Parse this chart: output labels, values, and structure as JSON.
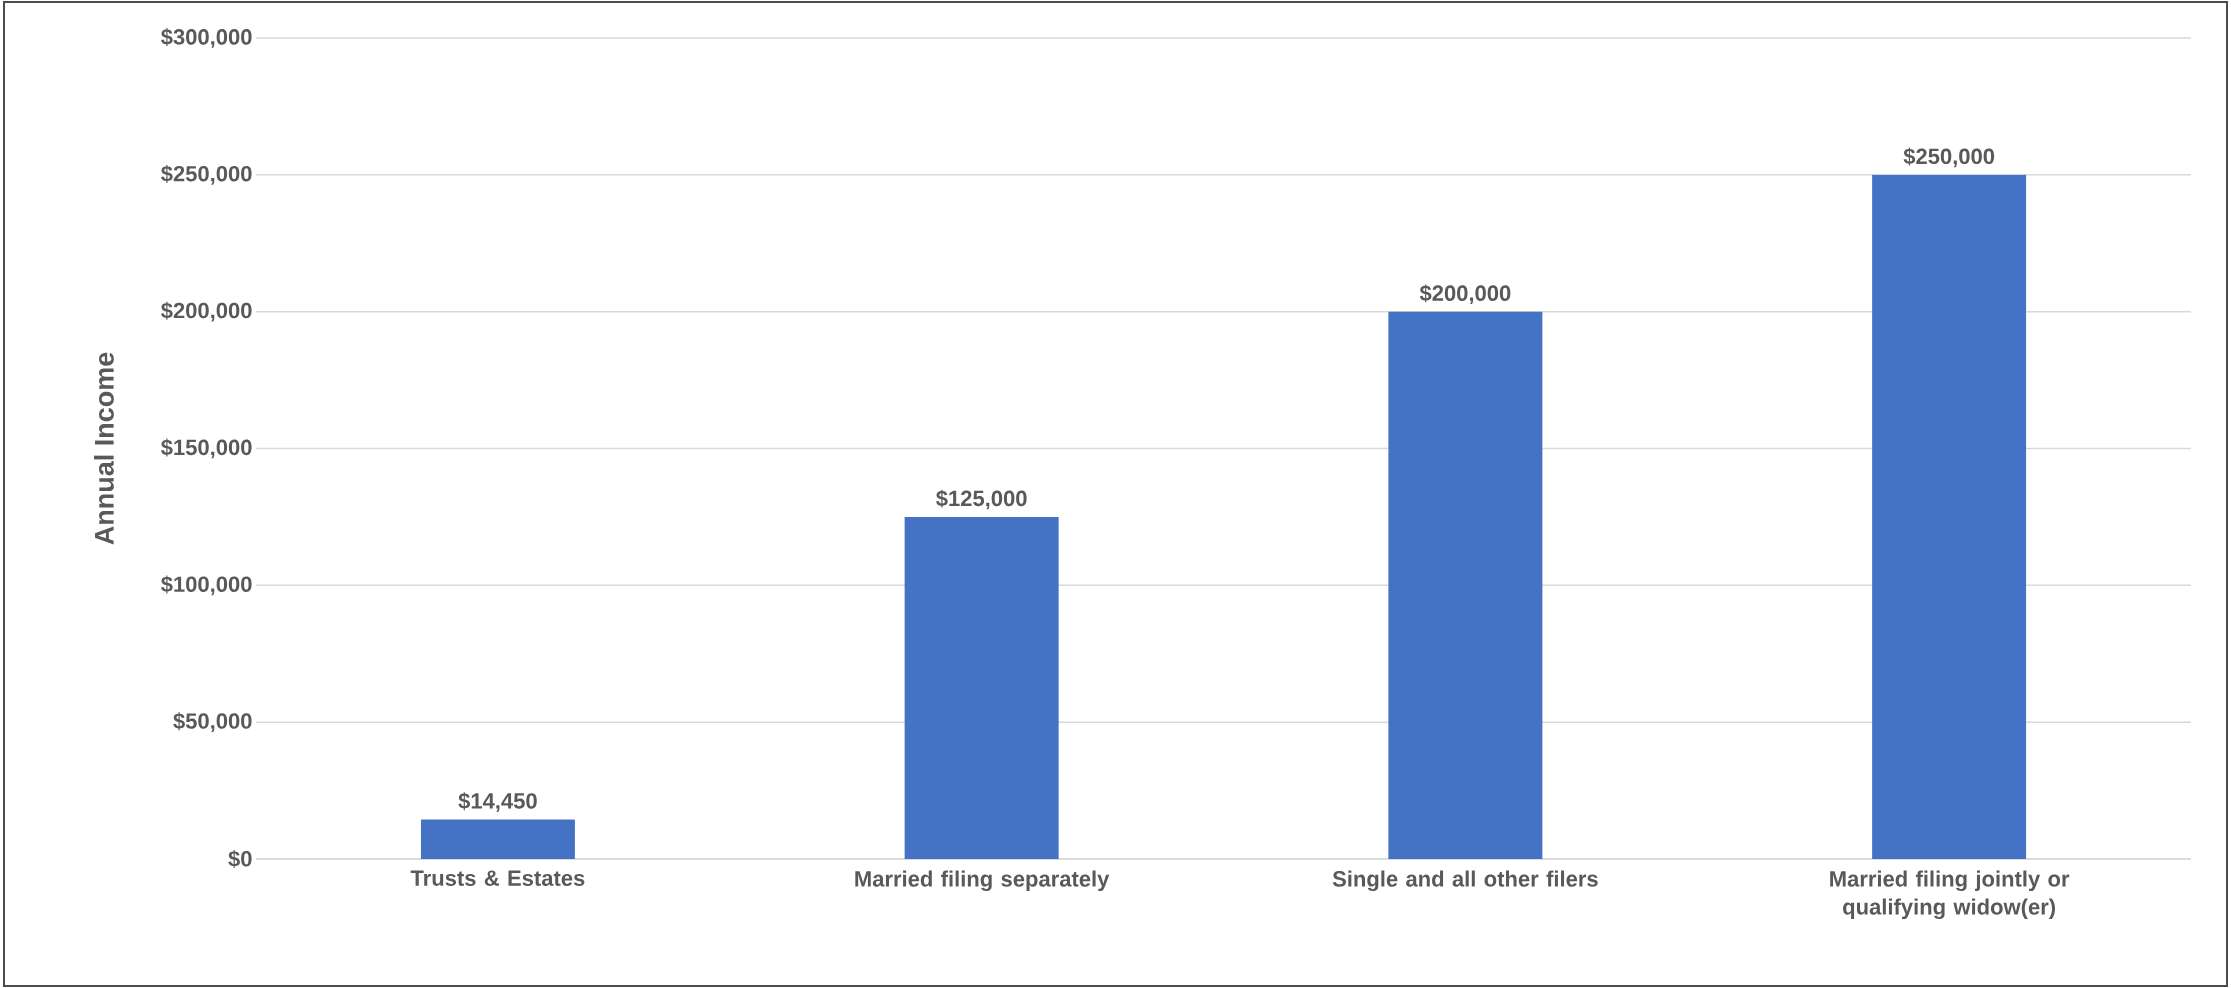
{
  "chart_data": {
    "type": "bar",
    "ylabel": "Annual Income",
    "categories": [
      "Trusts & Estates",
      "Married filing separately",
      "Single and all other filers",
      "Married filing jointly or qualifying widow(er)"
    ],
    "values": [
      14450,
      125000,
      200000,
      250000
    ],
    "value_labels": [
      "$14,450",
      "$125,000",
      "$200,000",
      "$250,000"
    ],
    "color": "#4472c4",
    "ylim": [
      0,
      300000
    ],
    "yticks": [
      {
        "value": 0,
        "label": "$0"
      },
      {
        "value": 50000,
        "label": "$50,000"
      },
      {
        "value": 100000,
        "label": "$100,000"
      },
      {
        "value": 150000,
        "label": "$150,000"
      },
      {
        "value": 200000,
        "label": "$200,000"
      },
      {
        "value": 250000,
        "label": "$250,000"
      },
      {
        "value": 300000,
        "label": "$300,000"
      }
    ],
    "grid": "y"
  }
}
